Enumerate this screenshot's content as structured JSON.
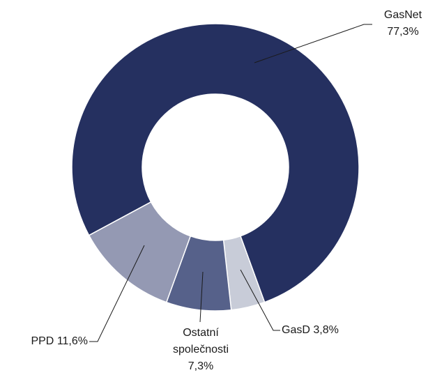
{
  "chart_data": {
    "type": "donut",
    "categories": [
      "GasNet",
      "GasD",
      "Ostatní společnosti",
      "PPD"
    ],
    "values": [
      77.3,
      3.8,
      7.3,
      11.6
    ],
    "value_labels": [
      "77,3%",
      "3,8%",
      "7,3%",
      "11,6%"
    ],
    "colors": [
      "#253060",
      "#c8ccd8",
      "#56618a",
      "#9499b3"
    ]
  }
}
